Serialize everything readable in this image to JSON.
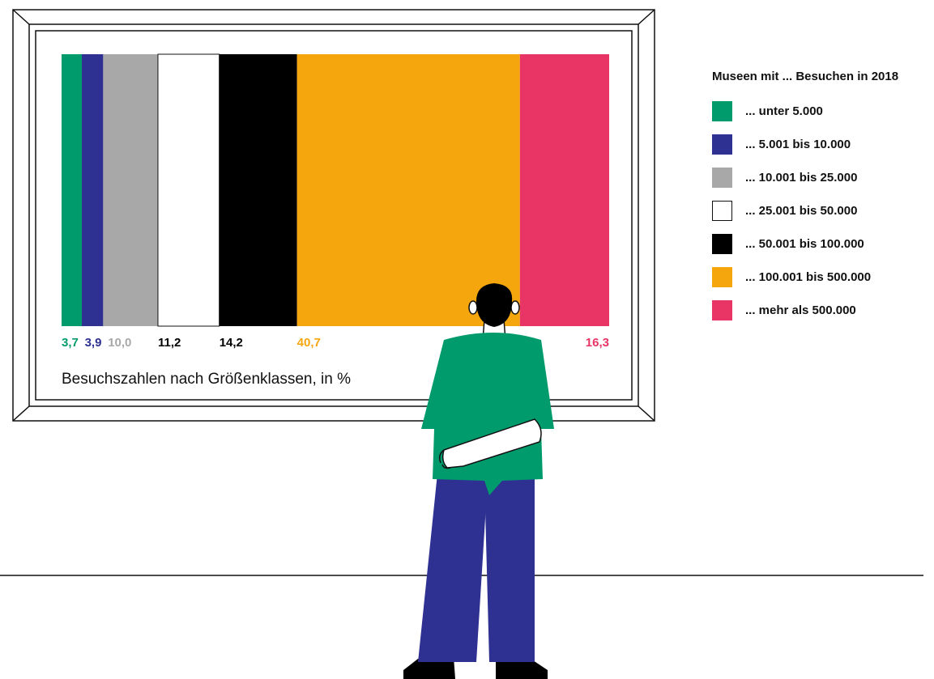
{
  "chart_data": {
    "type": "bar",
    "stacked": true,
    "orientation": "horizontal-100%",
    "title": "Besuchszahlen nach Größenklassen, in %",
    "legend_title": "Museen mit ... Besuchen in 2018",
    "legend_placement": "right",
    "categories": [
      "... unter 5.000",
      "... 5.001 bis 10.000",
      "... 10.001 bis 25.000",
      "... 25.001 bis 50.000",
      "... 50.001 bis 100.000",
      "... 100.001 bis 500.000",
      "... mehr als 500.000"
    ],
    "values": [
      3.7,
      3.9,
      10.0,
      11.2,
      14.2,
      40.7,
      16.3
    ],
    "value_labels": [
      "3,7",
      "3,9",
      "10,0",
      "11,2",
      "14,2",
      "40,7",
      "16,3"
    ],
    "colors": [
      "#009b6c",
      "#2e3192",
      "#a8a8a8",
      "#ffffff",
      "#000000",
      "#f6a60d",
      "#e83565"
    ],
    "label_colors": [
      "#009b6c",
      "#2e3192",
      "#a8a8a8",
      "#000000",
      "#000000",
      "#f6a60d",
      "#e83565"
    ]
  },
  "illustration": {
    "shirt_color": "#009b6c",
    "pants_color": "#2e3192",
    "hair_color": "#000000"
  }
}
